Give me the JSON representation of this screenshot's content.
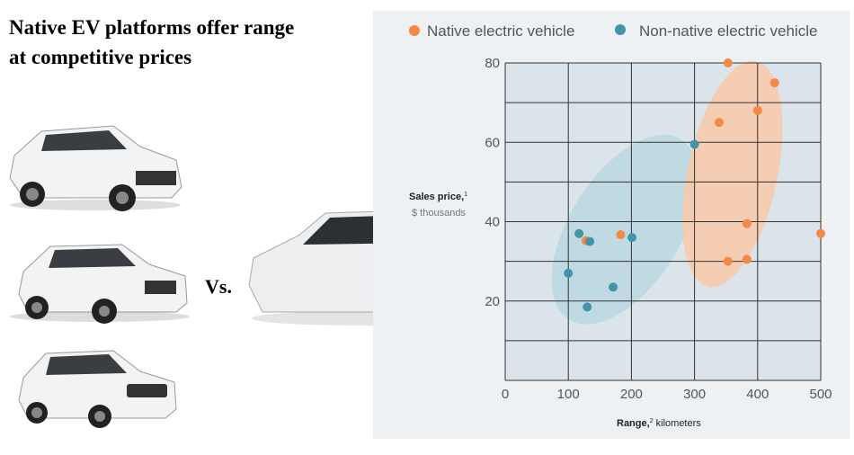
{
  "headline": {
    "line1": "Native EV platforms offer range",
    "line2": "at competitive prices"
  },
  "vs_label": "Vs.",
  "images": [
    "suv-audi-white",
    "suv-bmw-white",
    "suv-mercedes-white",
    "sedan-tesla-white"
  ],
  "chart_data": {
    "type": "scatter",
    "title": "",
    "xlabel": "Range,² kilometers",
    "xlabel_bold": "Range,",
    "xlabel_sup": "2",
    "xlabel_rest": " kilometers",
    "ylabel_bold": "Sales price,",
    "ylabel_sup": "1",
    "ylabel_rest": "$ thousands",
    "xlim": [
      0,
      500
    ],
    "ylim": [
      0,
      80
    ],
    "xticks": [
      0,
      100,
      200,
      300,
      400,
      500
    ],
    "yticks": [
      20,
      40,
      60,
      80
    ],
    "grid": true,
    "legend_placement": "top",
    "series": [
      {
        "name": "Native electric vehicle",
        "color": "#f28a45",
        "cluster_color": "#f9c9a8",
        "points": [
          [
            353,
            80
          ],
          [
            427,
            75
          ],
          [
            400,
            68
          ],
          [
            339,
            65
          ],
          [
            383,
            39.5
          ],
          [
            500,
            37
          ],
          [
            353,
            30
          ],
          [
            383,
            30.5
          ],
          [
            183,
            36.7
          ],
          [
            128,
            35.2
          ]
        ]
      },
      {
        "name": "Non-native electric vehicle",
        "color": "#4394a8",
        "cluster_color": "#b9d7e2",
        "points": [
          [
            300,
            59.5
          ],
          [
            117,
            37
          ],
          [
            134,
            35
          ],
          [
            201,
            36
          ],
          [
            100,
            27
          ],
          [
            171,
            23.5
          ],
          [
            130,
            18.5
          ]
        ]
      }
    ]
  }
}
